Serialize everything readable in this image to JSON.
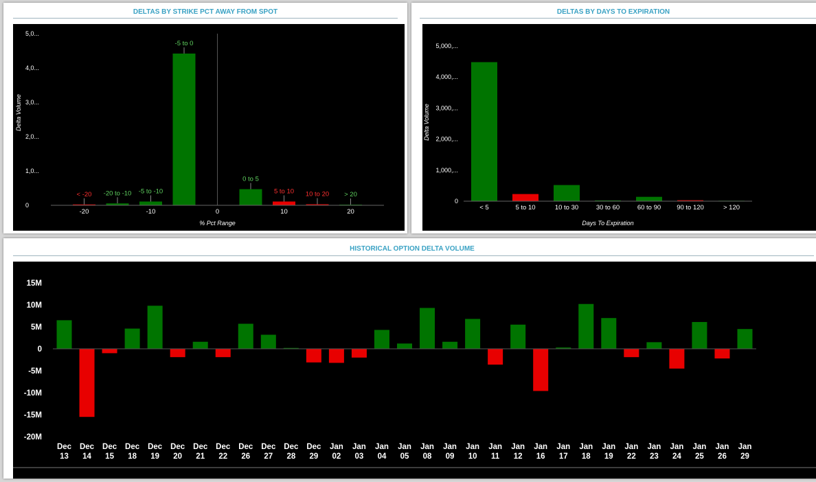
{
  "panels": {
    "strike": {
      "title": "DELTAS BY STRIKE PCT AWAY FROM SPOT"
    },
    "expiration": {
      "title": "DELTAS BY DAYS TO EXPIRATION"
    },
    "historical": {
      "title": "HISTORICAL OPTION DELTA VOLUME"
    }
  },
  "colors": {
    "positive": "#007400",
    "negative": "#e80000",
    "background": "#000000",
    "title": "#3aa2c4"
  },
  "chart_data": [
    {
      "id": "strike",
      "type": "bar",
      "title": "DELTAS BY STRIKE PCT AWAY FROM SPOT",
      "xlabel": "% Pct Range",
      "ylabel": "Delta Volume",
      "xlim": [
        -25,
        25
      ],
      "ylim": [
        0,
        5000
      ],
      "xticks": [
        -20,
        -10,
        0,
        10,
        20
      ],
      "yticks": [
        0,
        1000,
        2000,
        3000,
        4000,
        5000
      ],
      "ytick_labels": [
        "0",
        "1,0...",
        "2,0...",
        "3,0...",
        "4,0...",
        "5,0..."
      ],
      "bars": [
        {
          "label": "< -20",
          "center": -20,
          "width": 3.4,
          "value": 25,
          "sign": "negative"
        },
        {
          "label": "-20 to -10",
          "center": -15,
          "width": 3.4,
          "value": 55,
          "sign": "positive"
        },
        {
          "label": "-5 to -10",
          "center": -10,
          "width": 3.4,
          "value": 110,
          "sign": "positive"
        },
        {
          "label": "-5 to 0",
          "center": -5,
          "width": 3.4,
          "value": 4420,
          "sign": "positive"
        },
        {
          "label": "0 to 5",
          "center": 5,
          "width": 3.4,
          "value": 470,
          "sign": "positive"
        },
        {
          "label": "5 to 10",
          "center": 10,
          "width": 3.4,
          "value": 110,
          "sign": "negative"
        },
        {
          "label": "10 to 20",
          "center": 15,
          "width": 3.4,
          "value": 30,
          "sign": "negative"
        },
        {
          "label": "> 20",
          "center": 20,
          "width": 3.4,
          "value": 20,
          "sign": "positive"
        }
      ]
    },
    {
      "id": "expiration",
      "type": "bar",
      "title": "DELTAS BY DAYS TO EXPIRATION",
      "xlabel": "Days To Expiration",
      "ylabel": "Delta Volume",
      "ylim": [
        0,
        5000
      ],
      "yticks": [
        0,
        1000,
        2000,
        3000,
        4000,
        5000
      ],
      "ytick_labels": [
        "0",
        "1,000,...",
        "2,000,...",
        "3,000,...",
        "4,000,...",
        "5,000,..."
      ],
      "categories": [
        "< 5",
        "5 to 10",
        "10 to 30",
        "30 to 60",
        "60 to 90",
        "90 to 120",
        "> 120"
      ],
      "values": [
        4480,
        230,
        520,
        25,
        140,
        30,
        15
      ],
      "signs": [
        "positive",
        "negative",
        "positive",
        "positive",
        "positive",
        "negative",
        "positive"
      ]
    },
    {
      "id": "historical",
      "type": "bar",
      "title": "HISTORICAL OPTION DELTA VOLUME",
      "ylim": [
        -20,
        15
      ],
      "yticks": [
        -20,
        -15,
        -10,
        -5,
        0,
        5,
        10,
        15
      ],
      "ytick_labels": [
        "-20M",
        "-15M",
        "-10M",
        "-5M",
        "0",
        "5M",
        "10M",
        "15M"
      ],
      "categories": [
        [
          "Dec",
          "13"
        ],
        [
          "Dec",
          "14"
        ],
        [
          "Dec",
          "15"
        ],
        [
          "Dec",
          "18"
        ],
        [
          "Dec",
          "19"
        ],
        [
          "Dec",
          "20"
        ],
        [
          "Dec",
          "21"
        ],
        [
          "Dec",
          "22"
        ],
        [
          "Dec",
          "26"
        ],
        [
          "Dec",
          "27"
        ],
        [
          "Dec",
          "28"
        ],
        [
          "Dec",
          "29"
        ],
        [
          "Jan",
          "02"
        ],
        [
          "Jan",
          "03"
        ],
        [
          "Jan",
          "04"
        ],
        [
          "Jan",
          "05"
        ],
        [
          "Jan",
          "08"
        ],
        [
          "Jan",
          "09"
        ],
        [
          "Jan",
          "10"
        ],
        [
          "Jan",
          "11"
        ],
        [
          "Jan",
          "12"
        ],
        [
          "Jan",
          "16"
        ],
        [
          "Jan",
          "17"
        ],
        [
          "Jan",
          "18"
        ],
        [
          "Jan",
          "19"
        ],
        [
          "Jan",
          "22"
        ],
        [
          "Jan",
          "23"
        ],
        [
          "Jan",
          "24"
        ],
        [
          "Jan",
          "25"
        ],
        [
          "Jan",
          "26"
        ],
        [
          "Jan",
          "29"
        ]
      ],
      "values": [
        6.5,
        -15.5,
        -1.0,
        4.6,
        9.8,
        -1.9,
        1.6,
        -1.9,
        5.7,
        3.2,
        0.2,
        -3.1,
        -3.2,
        -2.0,
        4.3,
        1.2,
        9.3,
        1.6,
        6.8,
        -3.6,
        5.5,
        -9.6,
        0.3,
        10.2,
        7.0,
        -1.9,
        1.5,
        -4.5,
        6.1,
        -2.2,
        4.5
      ]
    }
  ]
}
